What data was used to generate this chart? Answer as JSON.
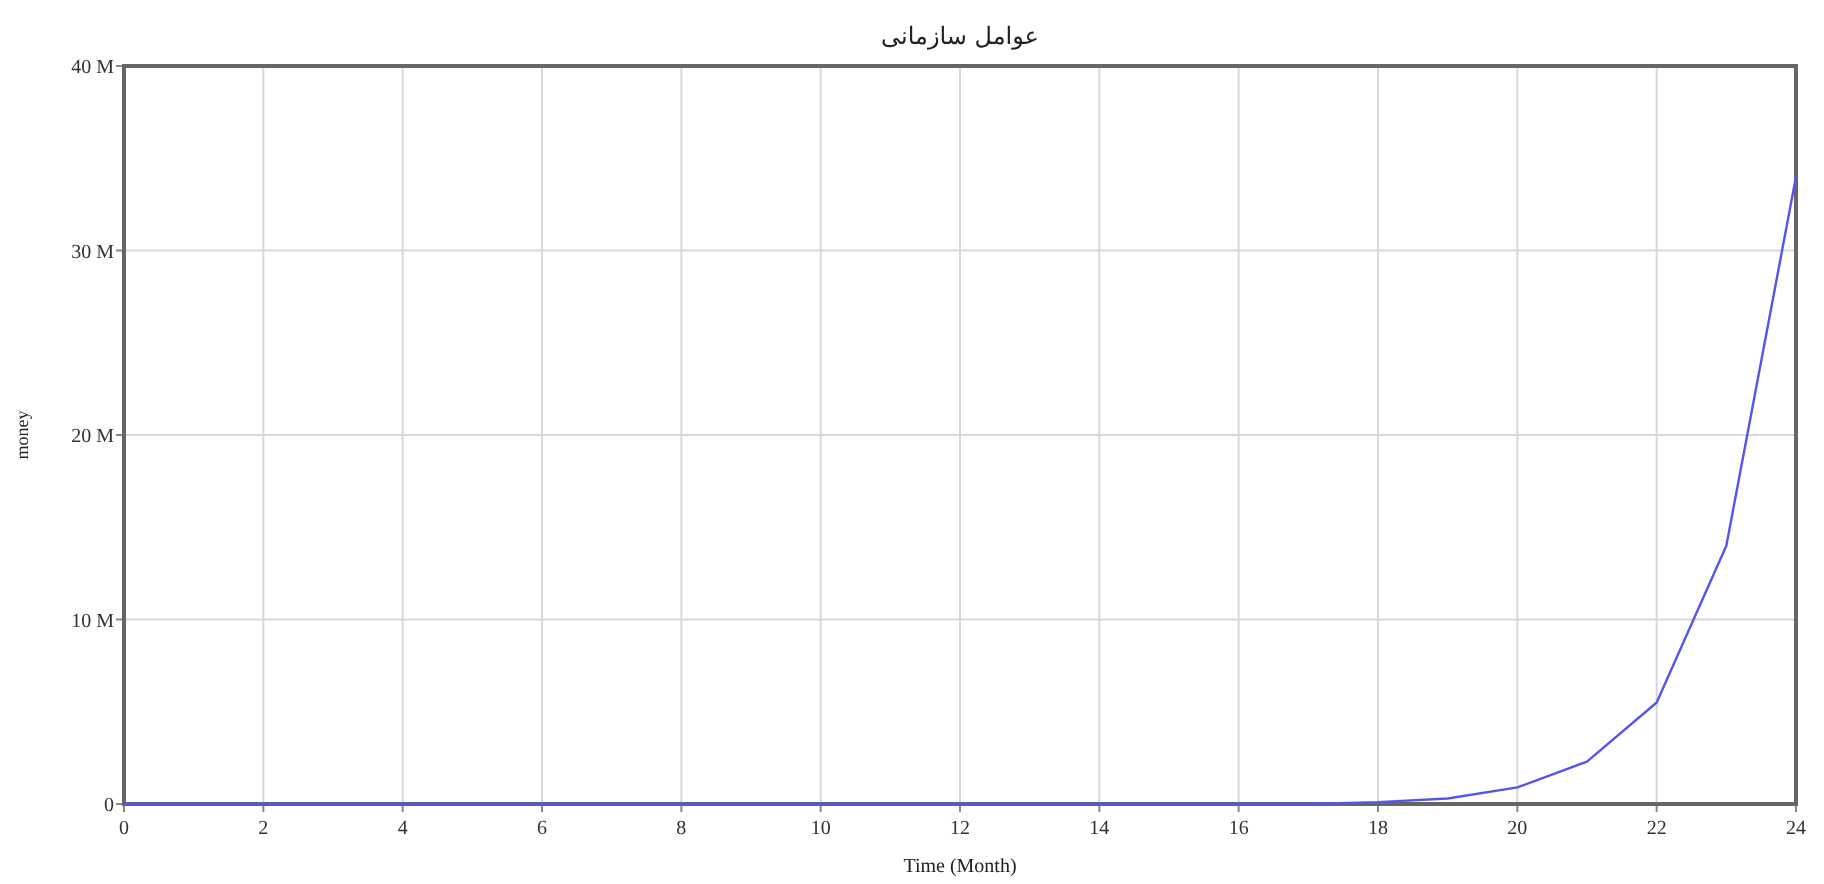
{
  "chart_data": {
    "type": "line",
    "title": "عوامل سازمانی",
    "xlabel": "Time (Month)",
    "ylabel": "money",
    "x": [
      0,
      1,
      2,
      3,
      4,
      5,
      6,
      7,
      8,
      9,
      10,
      11,
      12,
      13,
      14,
      15,
      16,
      17,
      18,
      19,
      20,
      21,
      22,
      23,
      24
    ],
    "series": [
      {
        "color": "#5555ee",
        "values": [
          0,
          0,
          0,
          0,
          0,
          0,
          0,
          0,
          0,
          0,
          0,
          0,
          0,
          0,
          0,
          0,
          0,
          0,
          0.1,
          0.3,
          0.9,
          2.3,
          5.5,
          14,
          34
        ]
      }
    ],
    "xlim": [
      0,
      24
    ],
    "xticks": [
      0,
      2,
      4,
      6,
      8,
      10,
      12,
      14,
      16,
      18,
      20,
      22,
      24
    ],
    "ylim": [
      0,
      40
    ],
    "yticks": [
      {
        "value": 0,
        "label": "0"
      },
      {
        "value": 10,
        "label": "10 M"
      },
      {
        "value": 20,
        "label": "20 M"
      },
      {
        "value": 30,
        "label": "30 M"
      },
      {
        "value": 40,
        "label": "40 M"
      }
    ],
    "grid": true,
    "marker": "none",
    "line_style": "solid"
  }
}
